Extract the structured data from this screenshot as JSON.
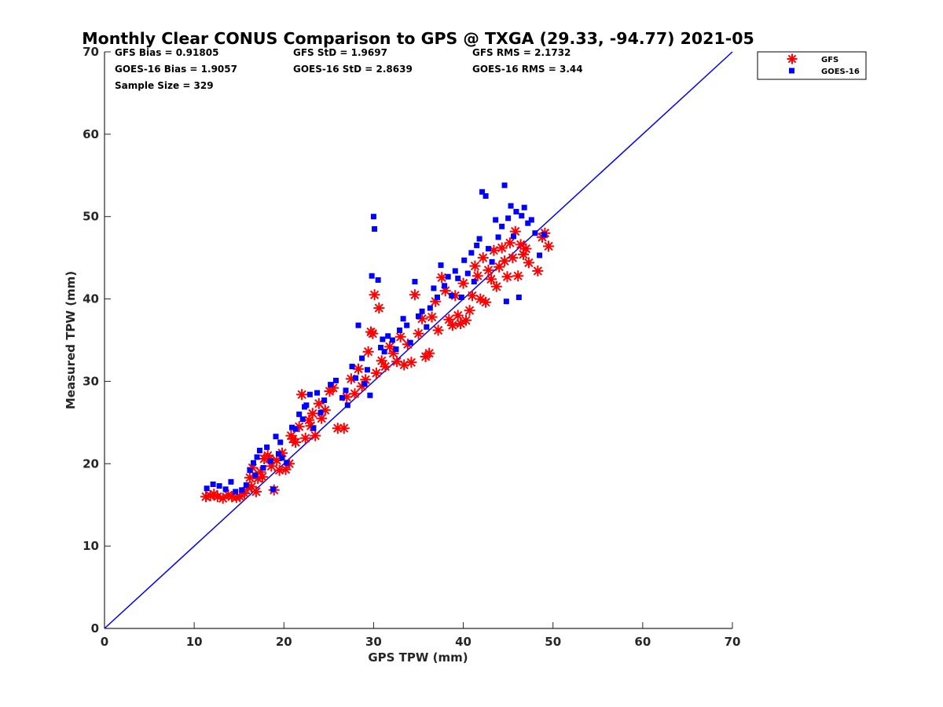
{
  "chart_data": {
    "type": "scatter",
    "title": "Monthly Clear CONUS Comparison to GPS @ TXGA (29.33, -94.77) 2021-05",
    "xlabel": "GPS TPW (mm)",
    "ylabel": "Measured TPW (mm)",
    "xlim": [
      0,
      70
    ],
    "ylim": [
      0,
      70
    ],
    "xticks": [
      0,
      10,
      20,
      30,
      40,
      50,
      60,
      70
    ],
    "yticks": [
      0,
      10,
      20,
      30,
      40,
      50,
      60,
      70
    ],
    "grid": false,
    "legend_position": "outside-top-right",
    "stats": [
      [
        "GFS Bias = 0.91805",
        "GFS StD = 1.9697",
        "GFS RMS = 2.1732"
      ],
      [
        "GOES-16 Bias = 1.9057",
        "GOES-16 StD = 2.8639",
        "GOES-16 RMS = 3.44"
      ],
      [
        "Sample Size = 329"
      ]
    ],
    "reference_line": {
      "x": [
        0,
        70
      ],
      "y": [
        0,
        70
      ],
      "color": "#0000ff"
    },
    "series": [
      {
        "name": "GFS",
        "marker": "asterisk",
        "color": "#ff0000",
        "points": [
          [
            11.3,
            16.0
          ],
          [
            11.8,
            16.1
          ],
          [
            12.2,
            16.3
          ],
          [
            12.6,
            16.0
          ],
          [
            13.2,
            15.8
          ],
          [
            13.8,
            16.2
          ],
          [
            14.2,
            16.0
          ],
          [
            14.7,
            15.9
          ],
          [
            15.1,
            16.0
          ],
          [
            15.6,
            16.4
          ],
          [
            16.0,
            17.1
          ],
          [
            16.2,
            18.3
          ],
          [
            16.5,
            19.5
          ],
          [
            16.9,
            16.6
          ],
          [
            17.1,
            18.2
          ],
          [
            17.4,
            19.0
          ],
          [
            17.8,
            20.6
          ],
          [
            18.2,
            21.0
          ],
          [
            18.6,
            19.7
          ],
          [
            18.9,
            16.8
          ],
          [
            19.2,
            20.4
          ],
          [
            19.5,
            19.2
          ],
          [
            19.8,
            21.3
          ],
          [
            20.2,
            19.3
          ],
          [
            20.6,
            20.0
          ],
          [
            21.0,
            23.0
          ],
          [
            21.3,
            22.6
          ],
          [
            21.7,
            24.5
          ],
          [
            22.0,
            28.4
          ],
          [
            22.4,
            23.1
          ],
          [
            22.8,
            25.3
          ],
          [
            23.2,
            26.1
          ],
          [
            23.5,
            23.4
          ],
          [
            23.9,
            27.3
          ],
          [
            24.2,
            25.5
          ],
          [
            24.6,
            26.5
          ],
          [
            25.1,
            28.8
          ],
          [
            25.5,
            29.2
          ],
          [
            26.0,
            24.3
          ],
          [
            26.7,
            24.3
          ],
          [
            27.0,
            28.1
          ],
          [
            27.5,
            30.3
          ],
          [
            27.9,
            28.5
          ],
          [
            28.3,
            31.5
          ],
          [
            28.7,
            29.4
          ],
          [
            29.1,
            30.2
          ],
          [
            29.4,
            33.6
          ],
          [
            29.7,
            36.0
          ],
          [
            29.9,
            35.8
          ],
          [
            30.1,
            40.5
          ],
          [
            30.3,
            31.0
          ],
          [
            30.6,
            38.9
          ],
          [
            30.9,
            32.5
          ],
          [
            31.3,
            31.8
          ],
          [
            31.8,
            34.2
          ],
          [
            32.2,
            33.4
          ],
          [
            32.6,
            32.4
          ],
          [
            33.0,
            35.4
          ],
          [
            33.4,
            32.0
          ],
          [
            33.8,
            34.5
          ],
          [
            34.2,
            32.3
          ],
          [
            34.6,
            40.5
          ],
          [
            35.0,
            35.8
          ],
          [
            35.4,
            37.6
          ],
          [
            35.8,
            33.0
          ],
          [
            36.2,
            33.4
          ],
          [
            36.5,
            37.8
          ],
          [
            36.9,
            39.7
          ],
          [
            37.2,
            36.2
          ],
          [
            37.6,
            42.6
          ],
          [
            38.0,
            41.0
          ],
          [
            38.4,
            37.5
          ],
          [
            38.8,
            36.8
          ],
          [
            39.1,
            40.4
          ],
          [
            39.4,
            38.0
          ],
          [
            39.7,
            37.0
          ],
          [
            40.0,
            41.9
          ],
          [
            40.3,
            37.4
          ],
          [
            40.7,
            38.6
          ],
          [
            41.0,
            40.4
          ],
          [
            41.3,
            44.0
          ],
          [
            41.6,
            42.8
          ],
          [
            41.9,
            40.0
          ],
          [
            42.2,
            45.0
          ],
          [
            42.5,
            39.6
          ],
          [
            42.8,
            43.5
          ],
          [
            43.1,
            42.4
          ],
          [
            43.4,
            45.9
          ],
          [
            43.7,
            41.5
          ],
          [
            44.0,
            43.9
          ],
          [
            44.3,
            46.2
          ],
          [
            44.6,
            44.6
          ],
          [
            44.9,
            42.7
          ],
          [
            45.2,
            46.8
          ],
          [
            45.5,
            45.0
          ],
          [
            45.8,
            48.2
          ],
          [
            46.1,
            42.8
          ],
          [
            46.4,
            46.6
          ],
          [
            46.7,
            45.4
          ],
          [
            47.0,
            46.1
          ],
          [
            47.3,
            44.4
          ],
          [
            48.3,
            43.4
          ],
          [
            48.8,
            47.5
          ],
          [
            49.1,
            48.0
          ],
          [
            49.5,
            46.4
          ],
          [
            16.4,
            17.2
          ],
          [
            17.6,
            18.4
          ],
          [
            18.4,
            20.6
          ],
          [
            20.8,
            23.4
          ],
          [
            23.0,
            24.6
          ]
        ]
      },
      {
        "name": "GOES-16",
        "marker": "square",
        "color": "#0000ff",
        "points": [
          [
            11.4,
            17.0
          ],
          [
            12.1,
            17.5
          ],
          [
            12.8,
            17.3
          ],
          [
            13.5,
            16.9
          ],
          [
            14.1,
            17.8
          ],
          [
            14.6,
            16.6
          ],
          [
            15.3,
            16.8
          ],
          [
            15.8,
            17.4
          ],
          [
            16.2,
            19.2
          ],
          [
            16.6,
            20.1
          ],
          [
            17.0,
            20.8
          ],
          [
            17.3,
            21.6
          ],
          [
            17.7,
            19.5
          ],
          [
            18.1,
            22.0
          ],
          [
            18.5,
            20.3
          ],
          [
            18.8,
            16.9
          ],
          [
            19.1,
            23.3
          ],
          [
            19.4,
            21.2
          ],
          [
            19.8,
            20.7
          ],
          [
            20.3,
            20.1
          ],
          [
            20.9,
            24.4
          ],
          [
            21.3,
            24.2
          ],
          [
            21.7,
            26.0
          ],
          [
            22.1,
            25.4
          ],
          [
            22.5,
            27.1
          ],
          [
            22.9,
            28.4
          ],
          [
            23.3,
            24.3
          ],
          [
            23.7,
            28.6
          ],
          [
            24.1,
            26.2
          ],
          [
            24.5,
            27.7
          ],
          [
            25.2,
            29.6
          ],
          [
            25.8,
            30.1
          ],
          [
            26.5,
            28.0
          ],
          [
            27.1,
            27.1
          ],
          [
            27.6,
            31.8
          ],
          [
            28.0,
            30.4
          ],
          [
            28.3,
            36.8
          ],
          [
            28.7,
            32.8
          ],
          [
            29.0,
            29.7
          ],
          [
            29.3,
            31.4
          ],
          [
            29.6,
            28.3
          ],
          [
            29.8,
            42.8
          ],
          [
            30.0,
            50.0
          ],
          [
            30.1,
            48.5
          ],
          [
            30.5,
            42.3
          ],
          [
            30.8,
            34.1
          ],
          [
            31.2,
            33.6
          ],
          [
            31.6,
            35.5
          ],
          [
            32.1,
            35.0
          ],
          [
            32.5,
            33.9
          ],
          [
            32.9,
            36.2
          ],
          [
            33.3,
            37.6
          ],
          [
            33.7,
            36.8
          ],
          [
            34.1,
            34.7
          ],
          [
            34.6,
            42.1
          ],
          [
            35.0,
            37.9
          ],
          [
            35.4,
            38.5
          ],
          [
            35.9,
            36.6
          ],
          [
            36.3,
            38.9
          ],
          [
            36.7,
            41.3
          ],
          [
            37.1,
            40.2
          ],
          [
            37.5,
            44.1
          ],
          [
            37.9,
            41.6
          ],
          [
            38.3,
            42.7
          ],
          [
            38.7,
            40.4
          ],
          [
            39.1,
            43.4
          ],
          [
            39.4,
            42.5
          ],
          [
            39.8,
            40.2
          ],
          [
            40.1,
            44.7
          ],
          [
            40.5,
            43.1
          ],
          [
            40.9,
            45.6
          ],
          [
            41.2,
            42.1
          ],
          [
            41.5,
            46.5
          ],
          [
            41.8,
            47.3
          ],
          [
            42.1,
            53.0
          ],
          [
            42.5,
            52.5
          ],
          [
            42.8,
            46.1
          ],
          [
            43.2,
            44.5
          ],
          [
            43.6,
            49.6
          ],
          [
            43.9,
            47.5
          ],
          [
            44.3,
            48.8
          ],
          [
            44.6,
            53.8
          ],
          [
            45.0,
            49.8
          ],
          [
            45.3,
            51.3
          ],
          [
            45.6,
            47.6
          ],
          [
            45.9,
            50.6
          ],
          [
            46.2,
            40.2
          ],
          [
            46.5,
            50.1
          ],
          [
            46.8,
            51.1
          ],
          [
            47.2,
            49.2
          ],
          [
            47.6,
            49.6
          ],
          [
            48.0,
            48.0
          ],
          [
            48.5,
            45.3
          ],
          [
            49.0,
            47.8
          ],
          [
            44.8,
            39.7
          ],
          [
            16.8,
            18.6
          ],
          [
            19.6,
            22.6
          ],
          [
            22.3,
            26.9
          ],
          [
            26.9,
            28.9
          ],
          [
            31.0,
            35.1
          ]
        ]
      }
    ]
  }
}
